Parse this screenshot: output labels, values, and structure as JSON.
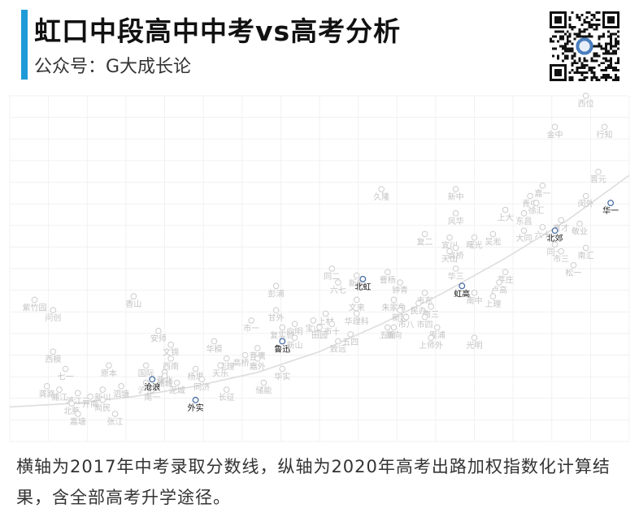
{
  "header": {
    "title": "虹口中段高中中考vs高考分析",
    "subtitle": "公众号：G大成长论"
  },
  "caption": "横轴为2017年中考录取分数线，纵轴为2020年高考出路加权指数化计算结果，含全部高考升学途径。",
  "colors": {
    "accent": "#1e9bd7",
    "highlight": "#4a6fa5",
    "muted": "#cccccc",
    "trend": "#dddddd"
  },
  "icons": {
    "qr": "qr-code-icon"
  },
  "chart_data": {
    "type": "scatter",
    "title": "",
    "xlabel": "",
    "ylabel": "",
    "grid": true,
    "xlim": [
      0,
      100
    ],
    "ylim": [
      0,
      100
    ],
    "trend": [
      [
        0,
        10
      ],
      [
        10,
        11
      ],
      [
        20,
        13
      ],
      [
        30,
        16
      ],
      [
        40,
        20
      ],
      [
        50,
        26
      ],
      [
        60,
        34
      ],
      [
        70,
        43
      ],
      [
        80,
        53
      ],
      [
        90,
        64
      ],
      [
        100,
        77
      ]
    ],
    "points": [
      {
        "name": "西位",
        "x": 93,
        "y": 100
      },
      {
        "name": "金中",
        "x": 88,
        "y": 91
      },
      {
        "name": "行知",
        "x": 96,
        "y": 91
      },
      {
        "name": "晋元",
        "x": 95,
        "y": 78
      },
      {
        "name": "久隆",
        "x": 60,
        "y": 73
      },
      {
        "name": "新中",
        "x": 72,
        "y": 73
      },
      {
        "name": "嘉一",
        "x": 86,
        "y": 74
      },
      {
        "name": "青中",
        "x": 84,
        "y": 71
      },
      {
        "name": "徐汇",
        "x": 85,
        "y": 69
      },
      {
        "name": "闵外",
        "x": 93,
        "y": 71
      },
      {
        "name": "华一",
        "x": 97,
        "y": 69,
        "highlight": true
      },
      {
        "name": "上大",
        "x": 80,
        "y": 67
      },
      {
        "name": "东昌",
        "x": 83,
        "y": 66
      },
      {
        "name": "风华",
        "x": 72,
        "y": 66
      },
      {
        "name": "育才",
        "x": 89,
        "y": 64
      },
      {
        "name": "敬业",
        "x": 92,
        "y": 63
      },
      {
        "name": "六十",
        "x": 86,
        "y": 62
      },
      {
        "name": "大同",
        "x": 83,
        "y": 61
      },
      {
        "name": "吴淞",
        "x": 78,
        "y": 60
      },
      {
        "name": "北郊",
        "x": 88,
        "y": 61,
        "highlight": true
      },
      {
        "name": "复二",
        "x": 67,
        "y": 60
      },
      {
        "name": "曙光",
        "x": 75,
        "y": 59
      },
      {
        "name": "宜川",
        "x": 71,
        "y": 59
      },
      {
        "name": "同一",
        "x": 88,
        "y": 57
      },
      {
        "name": "南汇",
        "x": 93,
        "y": 56
      },
      {
        "name": "高桥",
        "x": 72,
        "y": 56
      },
      {
        "name": "天山",
        "x": 71,
        "y": 55
      },
      {
        "name": "市三",
        "x": 89,
        "y": 55
      },
      {
        "name": "松一",
        "x": 91,
        "y": 51
      },
      {
        "name": "同二",
        "x": 52,
        "y": 50
      },
      {
        "name": "华三",
        "x": 72,
        "y": 50
      },
      {
        "name": "莘庄",
        "x": 80,
        "y": 49
      },
      {
        "name": "曹杨",
        "x": 61,
        "y": 49
      },
      {
        "name": "新凯",
        "x": 56,
        "y": 48
      },
      {
        "name": "北虹",
        "x": 57,
        "y": 47,
        "highlight": true
      },
      {
        "name": "六七",
        "x": 53,
        "y": 46
      },
      {
        "name": "钟青",
        "x": 63,
        "y": 46
      },
      {
        "name": "卢高",
        "x": 79,
        "y": 46
      },
      {
        "name": "彭浦",
        "x": 43,
        "y": 45
      },
      {
        "name": "虹高",
        "x": 73,
        "y": 45,
        "highlight": true
      },
      {
        "name": "南中",
        "x": 75,
        "y": 43
      },
      {
        "name": "市东",
        "x": 67,
        "y": 43
      },
      {
        "name": "上理",
        "x": 78,
        "y": 42
      },
      {
        "name": "香山",
        "x": 20,
        "y": 42
      },
      {
        "name": "紫竹园",
        "x": 4,
        "y": 41
      },
      {
        "name": "文来",
        "x": 56,
        "y": 41
      },
      {
        "name": "朱家角",
        "x": 62,
        "y": 41
      },
      {
        "name": "民办",
        "x": 66,
        "y": 40
      },
      {
        "name": "南三",
        "x": 68,
        "y": 39
      },
      {
        "name": "甘外",
        "x": 43,
        "y": 38
      },
      {
        "name": "新越",
        "x": 63,
        "y": 38
      },
      {
        "name": "问创",
        "x": 7,
        "y": 38
      },
      {
        "name": "上材",
        "x": 51,
        "y": 37
      },
      {
        "name": "华理科",
        "x": 56,
        "y": 37
      },
      {
        "name": "市八",
        "x": 64,
        "y": 36
      },
      {
        "name": "市四",
        "x": 67,
        "y": 36
      },
      {
        "name": "市一",
        "x": 39,
        "y": 35
      },
      {
        "name": "宝山",
        "x": 49,
        "y": 35
      },
      {
        "name": "向明",
        "x": 46,
        "y": 34
      },
      {
        "name": "市十",
        "x": 52,
        "y": 34
      },
      {
        "name": "复实验",
        "x": 44,
        "y": 33
      },
      {
        "name": "五爱",
        "x": 61,
        "y": 33
      },
      {
        "name": "新向",
        "x": 62,
        "y": 33
      },
      {
        "name": "周浦",
        "x": 69,
        "y": 33
      },
      {
        "name": "田园",
        "x": 50,
        "y": 33
      },
      {
        "name": "安师",
        "x": 24,
        "y": 32
      },
      {
        "name": "鲁迅",
        "x": 44,
        "y": 29,
        "highlight": true
      },
      {
        "name": "新山",
        "x": 46,
        "y": 30
      },
      {
        "name": "五四",
        "x": 55,
        "y": 31
      },
      {
        "name": "上师外",
        "x": 68,
        "y": 30
      },
      {
        "name": "光明",
        "x": 75,
        "y": 30
      },
      {
        "name": "华模",
        "x": 33,
        "y": 29
      },
      {
        "name": "致远",
        "x": 53,
        "y": 29
      },
      {
        "name": "文锦",
        "x": 26,
        "y": 28
      },
      {
        "name": "育鹰",
        "x": 40,
        "y": 27
      },
      {
        "name": "高桥二",
        "x": 38,
        "y": 25
      },
      {
        "name": "西南",
        "x": 26,
        "y": 24
      },
      {
        "name": "嘉外",
        "x": 40,
        "y": 24
      },
      {
        "name": "西模",
        "x": 7,
        "y": 26
      },
      {
        "name": "华理",
        "x": 35,
        "y": 24
      },
      {
        "name": "国际",
        "x": 22,
        "y": 22
      },
      {
        "name": "华实",
        "x": 44,
        "y": 21
      },
      {
        "name": "原本",
        "x": 16,
        "y": 22
      },
      {
        "name": "七一",
        "x": 9,
        "y": 21
      },
      {
        "name": "天乐",
        "x": 34,
        "y": 22
      },
      {
        "name": "晋北",
        "x": 25,
        "y": 20
      },
      {
        "name": "杨思",
        "x": 30,
        "y": 21
      },
      {
        "name": "浦城",
        "x": 25,
        "y": 19
      },
      {
        "name": "泥城",
        "x": 27,
        "y": 17
      },
      {
        "name": "同济",
        "x": 31,
        "y": 18
      },
      {
        "name": "储能",
        "x": 41,
        "y": 17
      },
      {
        "name": "沪东",
        "x": 22,
        "y": 17
      },
      {
        "name": "泗塘",
        "x": 18,
        "y": 16
      },
      {
        "name": "新川",
        "x": 15,
        "y": 15
      },
      {
        "name": "龚路",
        "x": 6,
        "y": 16
      },
      {
        "name": "浦江",
        "x": 8,
        "y": 15
      },
      {
        "name": "浦江二",
        "x": 11,
        "y": 14
      },
      {
        "name": "南一",
        "x": 23,
        "y": 15
      },
      {
        "name": "长征",
        "x": 35,
        "y": 15
      },
      {
        "name": "沧浪",
        "x": 23,
        "y": 18,
        "highlight": true
      },
      {
        "name": "开南",
        "x": 13,
        "y": 13
      },
      {
        "name": "尚民",
        "x": 15,
        "y": 12
      },
      {
        "name": "北蔡",
        "x": 10,
        "y": 11
      },
      {
        "name": "外实",
        "x": 30,
        "y": 12,
        "highlight": true
      },
      {
        "name": "嘉塘",
        "x": 11,
        "y": 8
      },
      {
        "name": "张江",
        "x": 17,
        "y": 8
      }
    ]
  }
}
